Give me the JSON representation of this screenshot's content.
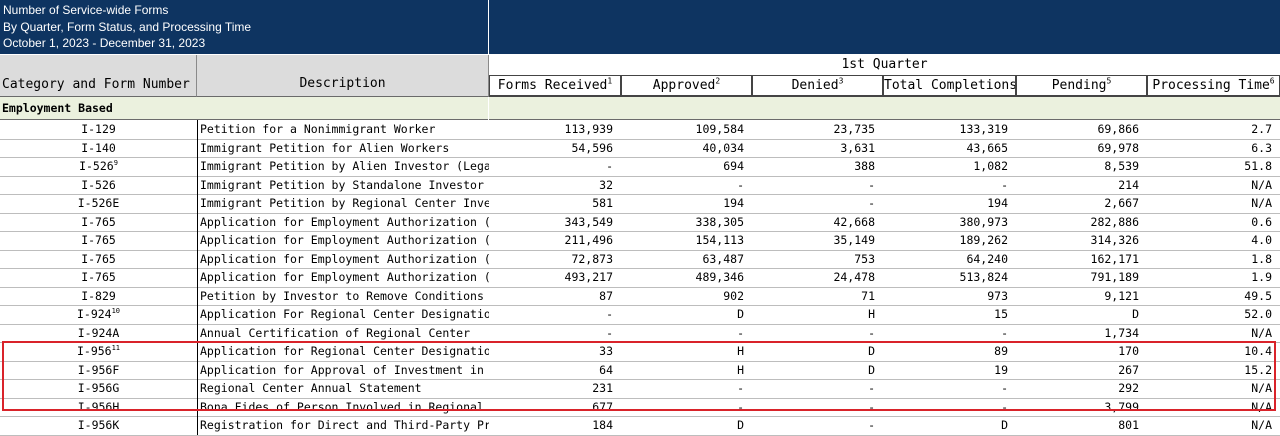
{
  "header": {
    "title_line1": "Number of Service-wide Forms",
    "title_line2": "By Quarter, Form Status, and Processing Time",
    "title_line3": "October 1, 2023 - December 31, 2023"
  },
  "table": {
    "category_label": "Category and Form Number",
    "description_label": "Description",
    "quarter_label": "1st Quarter",
    "columns": [
      {
        "label": "Forms Received",
        "sup": "1"
      },
      {
        "label": "Approved",
        "sup": "2"
      },
      {
        "label": "Denied",
        "sup": "3"
      },
      {
        "label": "Total Completions",
        "sup": ""
      },
      {
        "label": "Pending",
        "sup": "5"
      },
      {
        "label": "Processing Time",
        "sup": "6"
      }
    ],
    "section_label": "Employment Based",
    "rows": [
      {
        "form": "I-129",
        "sup": "",
        "desc": "Petition for a Nonimmigrant Worker",
        "vals": [
          "113,939",
          "109,584",
          "23,735",
          "133,319",
          "69,866",
          "2.7"
        ]
      },
      {
        "form": "I-140",
        "sup": "",
        "desc": "Immigrant Petition for Alien Workers",
        "vals": [
          "54,596",
          "40,034",
          "3,631",
          "43,665",
          "69,978",
          "6.3"
        ]
      },
      {
        "form": "I-526",
        "sup": "9",
        "desc": "Immigrant Petition by Alien Investor (Legacy)",
        "vals": [
          "-",
          "694",
          "388",
          "1,082",
          "8,539",
          "51.8"
        ]
      },
      {
        "form": "I-526",
        "sup": "",
        "desc": "Immigrant Petition by Standalone Investor",
        "vals": [
          "32",
          "-",
          "-",
          "-",
          "214",
          "N/A"
        ]
      },
      {
        "form": "I-526E",
        "sup": "",
        "desc": "Immigrant Petition by Regional Center Investor",
        "vals": [
          "581",
          "194",
          "-",
          "194",
          "2,667",
          "N/A"
        ]
      },
      {
        "form": "I-765",
        "sup": "",
        "desc": "Application for Employment Authorization (Asylum)",
        "vals": [
          "343,549",
          "338,305",
          "42,668",
          "380,973",
          "282,886",
          "0.6"
        ]
      },
      {
        "form": "I-765",
        "sup": "",
        "desc": "Application for Employment Authorization (Adjustment)",
        "vals": [
          "211,496",
          "154,113",
          "35,149",
          "189,262",
          "314,326",
          "4.0"
        ]
      },
      {
        "form": "I-765",
        "sup": "",
        "desc": "Application for Employment Authorization (DACA)",
        "vals": [
          "72,873",
          "63,487",
          "753",
          "64,240",
          "162,171",
          "1.8"
        ]
      },
      {
        "form": "I-765",
        "sup": "",
        "desc": "Application for Employment Authorization (All Other)",
        "vals": [
          "493,217",
          "489,346",
          "24,478",
          "513,824",
          "791,189",
          "1.9"
        ]
      },
      {
        "form": "I-829",
        "sup": "",
        "desc": "Petition by Investor to Remove Conditions on Permanent Resident Status",
        "vals": [
          "87",
          "902",
          "71",
          "973",
          "9,121",
          "49.5"
        ]
      },
      {
        "form": "I-924",
        "sup": "10",
        "desc": "Application For Regional Center Designation Under the Immigrant Investor Program",
        "vals": [
          "-",
          "D",
          "H",
          "15",
          "D",
          "52.0"
        ]
      },
      {
        "form": "I-924A",
        "sup": "",
        "desc": "Annual Certification of Regional Center",
        "vals": [
          "-",
          "-",
          "-",
          "-",
          "1,734",
          "N/A"
        ]
      },
      {
        "form": "I-956",
        "sup": "11",
        "desc": "Application for Regional Center Designation",
        "vals": [
          "33",
          "H",
          "D",
          "89",
          "170",
          "10.4"
        ]
      },
      {
        "form": "I-956F",
        "sup": "",
        "desc": "Application for Approval of Investment in a Commercial Enterprise",
        "vals": [
          "64",
          "H",
          "D",
          "19",
          "267",
          "15.2"
        ]
      },
      {
        "form": "I-956G",
        "sup": "",
        "desc": "Regional Center Annual Statement",
        "vals": [
          "231",
          "-",
          "-",
          "-",
          "292",
          "N/A"
        ]
      },
      {
        "form": "I-956H",
        "sup": "",
        "desc": "Bona Fides of Person Involved in Regional Center Program",
        "vals": [
          "677",
          "-",
          "-",
          "-",
          "3,799",
          "N/A"
        ]
      },
      {
        "form": "I-956K",
        "sup": "",
        "desc": "Registration for Direct and Third-Party Promoters",
        "vals": [
          "184",
          "D",
          "-",
          "D",
          "801",
          "N/A"
        ]
      }
    ]
  },
  "colors": {
    "header_navy": "#0e3461",
    "section_green": "#ebf1de",
    "highlight_red": "#d9232a"
  }
}
